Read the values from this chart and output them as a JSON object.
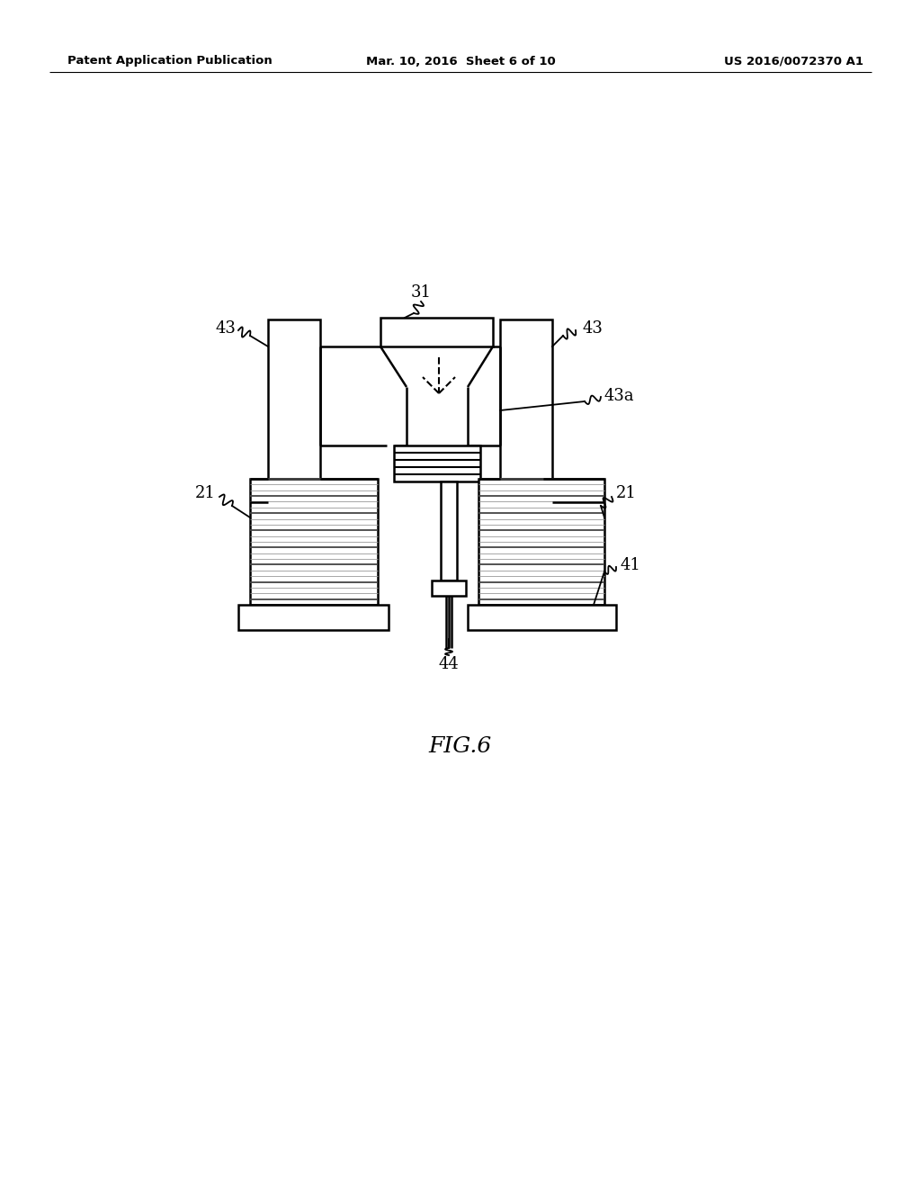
{
  "bg_color": "#ffffff",
  "line_color": "#000000",
  "header_left": "Patent Application Publication",
  "header_mid": "Mar. 10, 2016  Sheet 6 of 10",
  "header_right": "US 2016/0072370 A1",
  "fig_label": "FIG.6"
}
